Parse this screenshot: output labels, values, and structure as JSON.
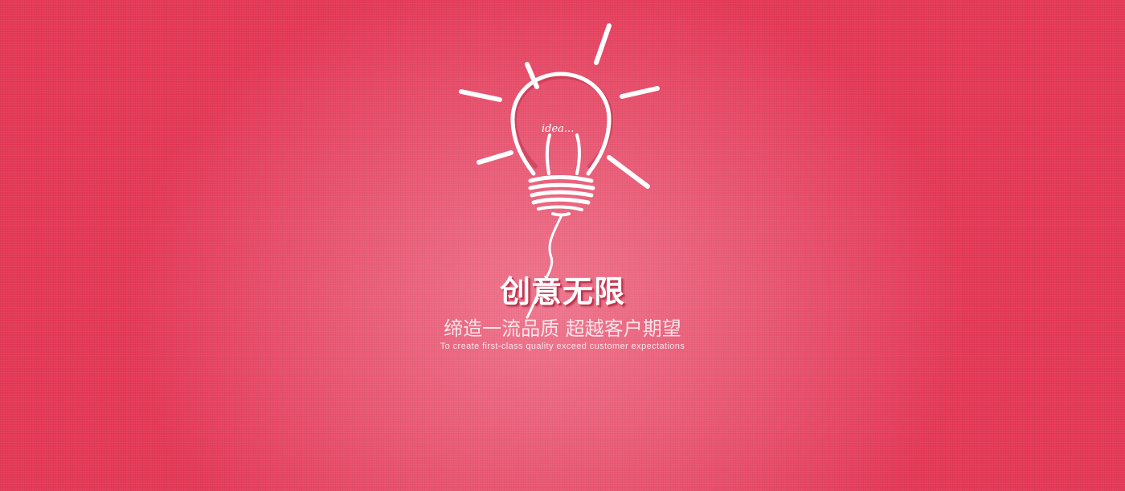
{
  "banner": {
    "headline": "创意无限",
    "subline": "缔造一流品质  超越客户期望",
    "english": "To create first-class quality exceed customer expectations",
    "bulb_label": "idea...",
    "colors": {
      "background_edge": "#e43a58",
      "background_center": "#f07890",
      "text": "#ffffff"
    },
    "icons": [
      "lightbulb-icon"
    ]
  }
}
